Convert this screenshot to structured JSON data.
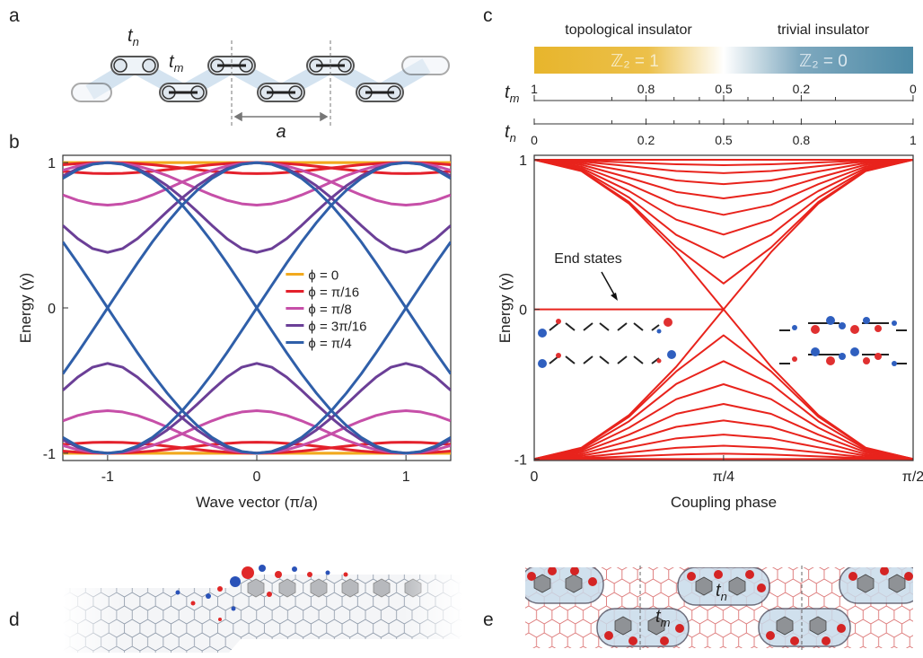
{
  "panel_labels": [
    "a",
    "b",
    "c",
    "d",
    "e"
  ],
  "panel_a": {
    "t_n": {
      "main": "t",
      "sub": "n"
    },
    "t_m": {
      "main": "t",
      "sub": "m"
    },
    "lattice_constant": "a"
  },
  "panel_e": {
    "t_n": {
      "main": "t",
      "sub": "n"
    },
    "t_m": {
      "main": "t",
      "sub": "m"
    }
  },
  "chart_data": [
    {
      "type": "line",
      "xlabel": "Wave vector (π/a)",
      "ylabel": "Energy (γ)",
      "xlim": [
        -1.3,
        1.3
      ],
      "xticks": [
        -1,
        0,
        1
      ],
      "ylim": [
        -1.05,
        1.05
      ],
      "yticks": [
        -1,
        0,
        1
      ],
      "legend": "center",
      "x": [
        -1.3,
        -1.2,
        -1.1,
        -1.0,
        -0.9,
        -0.8,
        -0.7,
        -0.6,
        -0.5,
        -0.4,
        -0.3,
        -0.2,
        -0.1,
        0,
        0.1,
        0.2,
        0.3,
        0.4,
        0.5,
        0.6,
        0.7,
        0.8,
        0.9,
        1.0,
        1.1,
        1.2,
        1.3
      ],
      "series": [
        {
          "name": "ϕ = 0",
          "color": "#f2a91e",
          "bands": [
            [
              1,
              1,
              1,
              1,
              1,
              1,
              1,
              1,
              1,
              1,
              1,
              1,
              1,
              1,
              1,
              1,
              1,
              1,
              1,
              1,
              1,
              1,
              1,
              1,
              1,
              1,
              1
            ],
            [
              1,
              1,
              1,
              1,
              1,
              1,
              1,
              1,
              1,
              1,
              1,
              1,
              1,
              1,
              1,
              1,
              1,
              1,
              1,
              1,
              1,
              1,
              1,
              1,
              1,
              1,
              1
            ],
            [
              -1,
              -1,
              -1,
              -1,
              -1,
              -1,
              -1,
              -1,
              -1,
              -1,
              -1,
              -1,
              -1,
              -1,
              -1,
              -1,
              -1,
              -1,
              -1,
              -1,
              -1,
              -1,
              -1,
              -1,
              -1,
              -1,
              -1
            ],
            [
              -1,
              -1,
              -1,
              -1,
              -1,
              -1,
              -1,
              -1,
              -1,
              -1,
              -1,
              -1,
              -1,
              -1,
              -1,
              -1,
              -1,
              -1,
              -1,
              -1,
              -1,
              -1,
              -1,
              -1,
              -1,
              -1,
              -1
            ]
          ]
        },
        {
          "name": "ϕ = π/16",
          "color": "#e3202b",
          "bands": [
            [
              0.94,
              0.932,
              0.926,
              0.924,
              0.926,
              0.932,
              0.94,
              0.951,
              0.963,
              0.974,
              0.985,
              0.993,
              0.998,
              1,
              0.998,
              0.993,
              0.985,
              0.974,
              0.963,
              0.951,
              0.94,
              0.932,
              0.926,
              0.924,
              0.926,
              0.932,
              0.94
            ],
            [
              0.985,
              0.993,
              0.998,
              1,
              0.998,
              0.993,
              0.985,
              0.974,
              0.963,
              0.951,
              0.94,
              0.932,
              0.926,
              0.924,
              0.926,
              0.932,
              0.94,
              0.951,
              0.963,
              0.974,
              0.985,
              0.993,
              0.998,
              1,
              0.998,
              0.993,
              0.985
            ],
            [
              -0.94,
              -0.932,
              -0.926,
              -0.924,
              -0.926,
              -0.932,
              -0.94,
              -0.951,
              -0.963,
              -0.974,
              -0.985,
              -0.993,
              -0.998,
              -1,
              -0.998,
              -0.993,
              -0.985,
              -0.974,
              -0.963,
              -0.951,
              -0.94,
              -0.932,
              -0.926,
              -0.924,
              -0.926,
              -0.932,
              -0.94
            ],
            [
              -0.985,
              -0.993,
              -0.998,
              -1,
              -0.998,
              -0.993,
              -0.985,
              -0.974,
              -0.963,
              -0.951,
              -0.94,
              -0.932,
              -0.926,
              -0.924,
              -0.926,
              -0.932,
              -0.94,
              -0.951,
              -0.963,
              -0.974,
              -0.985,
              -0.993,
              -0.998,
              -1,
              -0.998,
              -0.993,
              -0.985
            ]
          ]
        },
        {
          "name": "ϕ = π/8",
          "color": "#c64fa8",
          "bands": [
            [
              0.777,
              0.74,
              0.716,
              0.707,
              0.716,
              0.74,
              0.777,
              0.82,
              0.866,
              0.91,
              0.947,
              0.976,
              0.994,
              1,
              0.994,
              0.976,
              0.947,
              0.91,
              0.866,
              0.82,
              0.777,
              0.74,
              0.716,
              0.707,
              0.716,
              0.74,
              0.777
            ],
            [
              0.947,
              0.976,
              0.994,
              1,
              0.994,
              0.976,
              0.947,
              0.91,
              0.866,
              0.82,
              0.777,
              0.74,
              0.716,
              0.707,
              0.716,
              0.74,
              0.777,
              0.82,
              0.866,
              0.91,
              0.947,
              0.976,
              0.994,
              1,
              0.994,
              0.976,
              0.947
            ],
            [
              -0.777,
              -0.74,
              -0.716,
              -0.707,
              -0.716,
              -0.74,
              -0.777,
              -0.82,
              -0.866,
              -0.91,
              -0.947,
              -0.976,
              -0.994,
              -1,
              -0.994,
              -0.976,
              -0.947,
              -0.91,
              -0.866,
              -0.82,
              -0.777,
              -0.74,
              -0.716,
              -0.707,
              -0.716,
              -0.74,
              -0.777
            ],
            [
              -0.947,
              -0.976,
              -0.994,
              -1,
              -0.994,
              -0.976,
              -0.947,
              -0.91,
              -0.866,
              -0.82,
              -0.777,
              -0.74,
              -0.716,
              -0.707,
              -0.716,
              -0.74,
              -0.777,
              -0.82,
              -0.866,
              -0.91,
              -0.947,
              -0.976,
              -0.994,
              -1,
              -0.994,
              -0.976,
              -0.947
            ]
          ]
        },
        {
          "name": "ϕ = 3π/16",
          "color": "#6b3f97",
          "bands": [
            [
              0.567,
              0.476,
              0.408,
              0.382,
              0.408,
              0.476,
              0.567,
              0.664,
              0.757,
              0.84,
              0.908,
              0.959,
              0.99,
              1,
              0.99,
              0.959,
              0.908,
              0.84,
              0.757,
              0.664,
              0.567,
              0.476,
              0.408,
              0.382,
              0.408,
              0.476,
              0.567
            ],
            [
              0.908,
              0.959,
              0.99,
              1,
              0.99,
              0.959,
              0.908,
              0.84,
              0.757,
              0.664,
              0.567,
              0.476,
              0.408,
              0.382,
              0.408,
              0.476,
              0.567,
              0.664,
              0.757,
              0.84,
              0.908,
              0.959,
              0.99,
              1,
              0.99,
              0.959,
              0.908
            ],
            [
              -0.567,
              -0.476,
              -0.408,
              -0.382,
              -0.408,
              -0.476,
              -0.567,
              -0.664,
              -0.757,
              -0.84,
              -0.908,
              -0.959,
              -0.99,
              -1,
              -0.99,
              -0.959,
              -0.908,
              -0.84,
              -0.757,
              -0.664,
              -0.567,
              -0.476,
              -0.408,
              -0.382,
              -0.408,
              -0.476,
              -0.567
            ],
            [
              -0.908,
              -0.959,
              -0.99,
              -1,
              -0.99,
              -0.959,
              -0.908,
              -0.84,
              -0.757,
              -0.664,
              -0.567,
              -0.476,
              -0.408,
              -0.382,
              -0.408,
              -0.476,
              -0.567,
              -0.664,
              -0.757,
              -0.84,
              -0.908,
              -0.959,
              -0.99,
              -1,
              -0.99,
              -0.959,
              -0.908
            ]
          ]
        },
        {
          "name": "ϕ = π/4",
          "color": "#2f5fa9",
          "bands": [
            [
              0.454,
              0.308,
              0.155,
              0,
              0.155,
              0.308,
              0.454,
              0.587,
              0.707,
              0.809,
              0.891,
              0.951,
              0.988,
              1,
              0.988,
              0.951,
              0.891,
              0.809,
              0.707,
              0.587,
              0.454,
              0.308,
              0.155,
              0,
              0.155,
              0.308,
              0.454
            ],
            [
              0.891,
              0.951,
              0.988,
              1,
              0.988,
              0.951,
              0.891,
              0.809,
              0.707,
              0.587,
              0.454,
              0.308,
              0.155,
              0,
              0.155,
              0.308,
              0.454,
              0.587,
              0.707,
              0.809,
              0.891,
              0.951,
              0.988,
              1,
              0.988,
              0.951,
              0.891
            ],
            [
              -0.454,
              -0.308,
              -0.155,
              0,
              -0.155,
              -0.308,
              -0.454,
              -0.587,
              -0.707,
              -0.809,
              -0.891,
              -0.951,
              -0.988,
              -1,
              -0.988,
              -0.951,
              -0.891,
              -0.809,
              -0.707,
              -0.587,
              -0.454,
              -0.308,
              -0.155,
              0,
              -0.155,
              -0.308,
              -0.454
            ],
            [
              -0.891,
              -0.951,
              -0.988,
              -1,
              -0.988,
              -0.951,
              -0.891,
              -0.809,
              -0.707,
              -0.587,
              -0.454,
              -0.308,
              -0.155,
              0,
              -0.155,
              -0.308,
              -0.454,
              -0.587,
              -0.707,
              -0.809,
              -0.891,
              -0.951,
              -0.988,
              -1,
              -0.988,
              -0.951,
              -0.891
            ]
          ]
        }
      ]
    },
    {
      "type": "line",
      "xlabel": "Coupling phase",
      "ylabel": "Energy (γ)",
      "xlim": [
        0,
        1.571
      ],
      "xticks": [
        0,
        {
          "value": 0.785,
          "label": "π/4"
        },
        {
          "value": 1.571,
          "label": "π/2"
        }
      ],
      "ylim": [
        -1.01,
        1.03
      ],
      "yticks": [
        -1,
        0,
        1
      ],
      "color": "#e8231c",
      "annotation": "End states",
      "header": [
        {
          "text": "topological insulator",
          "invariant": "ℤ₂ = 1"
        },
        {
          "text": "trivial insulator",
          "invariant": "ℤ₂ = 0"
        }
      ],
      "tm_axis": {
        "label": {
          "main": "t",
          "sub": "m"
        },
        "ticks": [
          1,
          0.8,
          0.5,
          0.2,
          0
        ],
        "minor_ticks": [
          0.9,
          0.7,
          0.6,
          0.4,
          0.3,
          0.1
        ]
      },
      "tn_axis": {
        "label": {
          "main": "t",
          "sub": "n"
        },
        "ticks": [
          0,
          0.2,
          0.5,
          0.8,
          1
        ],
        "minor_ticks": [
          0.1,
          0.3,
          0.4,
          0.6,
          0.7,
          0.9
        ]
      },
      "x": [
        0,
        0.196,
        0.393,
        0.589,
        0.785,
        0.982,
        1.178,
        1.374,
        1.571
      ],
      "series": [
        {
          "values": [
            1,
            1,
            1,
            1,
            1,
            1,
            1,
            1,
            1
          ]
        },
        {
          "values": [
            1,
            0.995,
            0.982,
            0.97,
            0.964,
            0.97,
            0.982,
            0.995,
            1
          ]
        },
        {
          "values": [
            1,
            0.988,
            0.957,
            0.925,
            0.911,
            0.925,
            0.957,
            0.988,
            1
          ]
        },
        {
          "values": [
            1,
            0.978,
            0.922,
            0.862,
            0.837,
            0.862,
            0.922,
            0.978,
            1
          ]
        },
        {
          "values": [
            1,
            0.967,
            0.88,
            0.785,
            0.742,
            0.785,
            0.88,
            0.967,
            1
          ]
        },
        {
          "values": [
            1,
            0.955,
            0.837,
            0.698,
            0.632,
            0.698,
            0.837,
            0.955,
            1
          ]
        },
        {
          "values": [
            1,
            0.944,
            0.791,
            0.6,
            0.5,
            0.6,
            0.791,
            0.944,
            1
          ]
        },
        {
          "values": [
            1,
            0.934,
            0.748,
            0.498,
            0.346,
            0.498,
            0.748,
            0.934,
            1
          ]
        },
        {
          "values": [
            1,
            0.927,
            0.718,
            0.414,
            0.173,
            0.414,
            0.718,
            0.927,
            1
          ]
        },
        {
          "values": [
            1,
            0.924,
            0.707,
            0.383,
            0,
            0.383,
            0.707,
            0.924,
            1
          ]
        },
        {
          "values": [
            -1,
            -1,
            -1,
            -1,
            -1,
            -1,
            -1,
            -1,
            -1
          ]
        },
        {
          "values": [
            -1,
            -0.995,
            -0.982,
            -0.97,
            -0.964,
            -0.97,
            -0.982,
            -0.995,
            -1
          ]
        },
        {
          "values": [
            -1,
            -0.988,
            -0.957,
            -0.925,
            -0.911,
            -0.925,
            -0.957,
            -0.988,
            -1
          ]
        },
        {
          "values": [
            -1,
            -0.978,
            -0.922,
            -0.862,
            -0.837,
            -0.862,
            -0.922,
            -0.978,
            -1
          ]
        },
        {
          "values": [
            -1,
            -0.967,
            -0.88,
            -0.785,
            -0.742,
            -0.785,
            -0.88,
            -0.967,
            -1
          ]
        },
        {
          "values": [
            -1,
            -0.955,
            -0.837,
            -0.698,
            -0.632,
            -0.698,
            -0.837,
            -0.955,
            -1
          ]
        },
        {
          "values": [
            -1,
            -0.944,
            -0.791,
            -0.6,
            -0.5,
            -0.6,
            -0.791,
            -0.944,
            -1
          ]
        },
        {
          "values": [
            -1,
            -0.934,
            -0.748,
            -0.498,
            -0.346,
            -0.498,
            -0.748,
            -0.934,
            -1
          ]
        },
        {
          "values": [
            -1,
            -0.927,
            -0.718,
            -0.414,
            -0.173,
            -0.414,
            -0.718,
            -0.927,
            -1
          ]
        },
        {
          "values": [
            -1,
            -0.924,
            -0.707,
            -0.383,
            0,
            -0.383,
            -0.707,
            -0.924,
            -1
          ]
        },
        {
          "values": [
            0,
            0,
            0,
            0,
            0,
            null,
            null,
            null,
            null
          ]
        }
      ]
    }
  ]
}
